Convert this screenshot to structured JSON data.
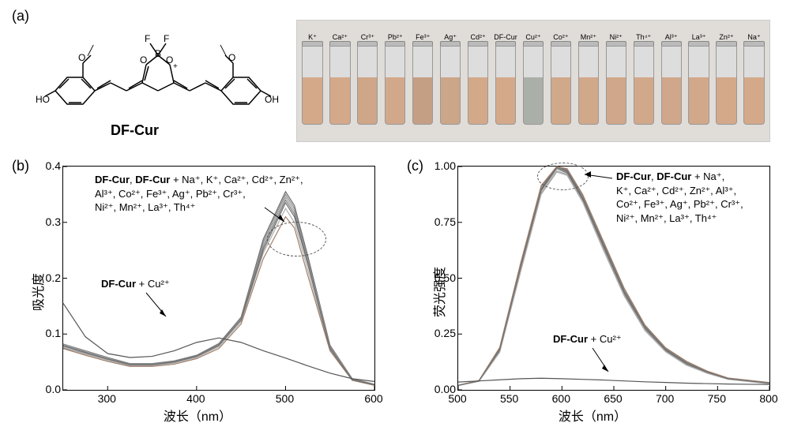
{
  "panels": {
    "a": {
      "label": "(a)"
    },
    "b": {
      "label": "(b)"
    },
    "c": {
      "label": "(c)"
    }
  },
  "structure": {
    "name": "DF-Cur",
    "atoms": [
      "HO",
      "O",
      "O",
      "O",
      "B",
      "F",
      "F",
      "O",
      "OH"
    ]
  },
  "vials": {
    "labels": [
      "K⁺",
      "Ca²⁺",
      "Cr³⁺",
      "Pb²⁺",
      "Fe³⁺",
      "Ag⁺",
      "Cd²⁺",
      "DF-Cur",
      "Cu²⁺",
      "Co²⁺",
      "Mn²⁺",
      "Ni²⁺",
      "Th⁴⁺",
      "Al³⁺",
      "La³⁺",
      "Zn²⁺",
      "Na⁺"
    ],
    "liquid_colors": [
      "#d4a98a",
      "#d4a98a",
      "#cfa688",
      "#d2a88a",
      "#c59f84",
      "#cca688",
      "#d3a98a",
      "#d4a98a",
      "#aab0a8",
      "#d0a88a",
      "#d2a88a",
      "#d0a78a",
      "#d2a88a",
      "#d0a78a",
      "#d2a88a",
      "#d3a98a",
      "#d4a98a"
    ]
  },
  "chartB": {
    "type": "line-bundle",
    "x_axis_label": "波长（nm）",
    "y_axis_label": "吸光度",
    "xlim": [
      250,
      600
    ],
    "ylim": [
      0,
      0.4
    ],
    "xticks": [
      300,
      400,
      500,
      600
    ],
    "yticks": [
      0.0,
      0.1,
      0.2,
      0.3,
      0.4
    ],
    "bundle_colors": [
      "#6a6a6a",
      "#8a8a8a",
      "#9c9c9c",
      "#7d7d7d",
      "#b0b0b0",
      "#a07f6a",
      "#707070"
    ],
    "cu_color": "#555555",
    "background_color": "#ffffff",
    "line_width": 1.2,
    "annotation_bundle_lines": [
      "DF-Cur, DF-Cur + Na⁺, K⁺, Ca²⁺,  Cd²⁺, Zn²⁺,",
      "Al³⁺, Co²⁺, Fe³⁺, Ag⁺, Pb²⁺, Cr³⁺,",
      "Ni²⁺, Mn²⁺, La³⁺, Th⁴⁺"
    ],
    "annotation_cu": "DF-Cur + Cu²⁺",
    "bundle_curves": [
      [
        [
          250,
          0.075
        ],
        [
          275,
          0.065
        ],
        [
          300,
          0.055
        ],
        [
          325,
          0.045
        ],
        [
          350,
          0.045
        ],
        [
          375,
          0.05
        ],
        [
          400,
          0.06
        ],
        [
          425,
          0.08
        ],
        [
          450,
          0.13
        ],
        [
          475,
          0.27
        ],
        [
          500,
          0.355
        ],
        [
          510,
          0.33
        ],
        [
          525,
          0.24
        ],
        [
          550,
          0.08
        ],
        [
          575,
          0.02
        ],
        [
          600,
          0.01
        ]
      ],
      [
        [
          250,
          0.08
        ],
        [
          275,
          0.068
        ],
        [
          300,
          0.056
        ],
        [
          325,
          0.046
        ],
        [
          350,
          0.046
        ],
        [
          375,
          0.051
        ],
        [
          400,
          0.061
        ],
        [
          425,
          0.082
        ],
        [
          450,
          0.128
        ],
        [
          475,
          0.265
        ],
        [
          500,
          0.35
        ],
        [
          510,
          0.325
        ],
        [
          525,
          0.235
        ],
        [
          550,
          0.078
        ],
        [
          575,
          0.02
        ],
        [
          600,
          0.01
        ]
      ],
      [
        [
          250,
          0.078
        ],
        [
          275,
          0.066
        ],
        [
          300,
          0.054
        ],
        [
          325,
          0.044
        ],
        [
          350,
          0.044
        ],
        [
          375,
          0.049
        ],
        [
          400,
          0.059
        ],
        [
          425,
          0.079
        ],
        [
          450,
          0.126
        ],
        [
          475,
          0.26
        ],
        [
          500,
          0.345
        ],
        [
          510,
          0.32
        ],
        [
          525,
          0.23
        ],
        [
          550,
          0.076
        ],
        [
          575,
          0.019
        ],
        [
          600,
          0.009
        ]
      ],
      [
        [
          250,
          0.082
        ],
        [
          275,
          0.07
        ],
        [
          300,
          0.058
        ],
        [
          325,
          0.047
        ],
        [
          350,
          0.047
        ],
        [
          375,
          0.052
        ],
        [
          400,
          0.062
        ],
        [
          425,
          0.083
        ],
        [
          450,
          0.13
        ],
        [
          475,
          0.255
        ],
        [
          500,
          0.34
        ],
        [
          510,
          0.315
        ],
        [
          525,
          0.228
        ],
        [
          550,
          0.075
        ],
        [
          575,
          0.019
        ],
        [
          600,
          0.009
        ]
      ],
      [
        [
          250,
          0.076
        ],
        [
          275,
          0.064
        ],
        [
          300,
          0.053
        ],
        [
          325,
          0.043
        ],
        [
          350,
          0.043
        ],
        [
          375,
          0.048
        ],
        [
          400,
          0.058
        ],
        [
          425,
          0.077
        ],
        [
          450,
          0.122
        ],
        [
          475,
          0.245
        ],
        [
          500,
          0.325
        ],
        [
          510,
          0.3
        ],
        [
          525,
          0.215
        ],
        [
          550,
          0.072
        ],
        [
          575,
          0.018
        ],
        [
          600,
          0.008
        ]
      ],
      [
        [
          250,
          0.074
        ],
        [
          275,
          0.062
        ],
        [
          300,
          0.051
        ],
        [
          325,
          0.042
        ],
        [
          350,
          0.042
        ],
        [
          375,
          0.046
        ],
        [
          400,
          0.056
        ],
        [
          425,
          0.074
        ],
        [
          450,
          0.118
        ],
        [
          475,
          0.235
        ],
        [
          500,
          0.31
        ],
        [
          510,
          0.29
        ],
        [
          525,
          0.205
        ],
        [
          550,
          0.07
        ],
        [
          575,
          0.017
        ],
        [
          600,
          0.008
        ]
      ],
      [
        [
          250,
          0.079
        ],
        [
          275,
          0.067
        ],
        [
          300,
          0.055
        ],
        [
          325,
          0.045
        ],
        [
          350,
          0.045
        ],
        [
          375,
          0.05
        ],
        [
          400,
          0.06
        ],
        [
          425,
          0.08
        ],
        [
          450,
          0.125
        ],
        [
          475,
          0.25
        ],
        [
          500,
          0.335
        ],
        [
          510,
          0.31
        ],
        [
          525,
          0.225
        ],
        [
          550,
          0.074
        ],
        [
          575,
          0.018
        ],
        [
          600,
          0.009
        ]
      ]
    ],
    "cu_curve": [
      [
        250,
        0.155
      ],
      [
        275,
        0.095
      ],
      [
        300,
        0.065
      ],
      [
        325,
        0.058
      ],
      [
        350,
        0.06
      ],
      [
        375,
        0.07
      ],
      [
        400,
        0.085
      ],
      [
        425,
        0.093
      ],
      [
        450,
        0.085
      ],
      [
        475,
        0.07
      ],
      [
        500,
        0.057
      ],
      [
        525,
        0.043
      ],
      [
        550,
        0.03
      ],
      [
        575,
        0.02
      ],
      [
        600,
        0.015
      ]
    ]
  },
  "chartC": {
    "type": "line-bundle",
    "x_axis_label": "波长（nm）",
    "y_axis_label": "荧光强度",
    "xlim": [
      500,
      800
    ],
    "ylim": [
      0,
      1.0
    ],
    "xticks": [
      500,
      550,
      600,
      650,
      700,
      750,
      800
    ],
    "yticks": [
      0.0,
      0.25,
      0.5,
      0.75,
      1.0
    ],
    "bundle_colors": [
      "#6a6a6a",
      "#8a8a8a",
      "#9c9c9c",
      "#7d7d7d",
      "#b0b0b0",
      "#a07f6a",
      "#707070"
    ],
    "cu_color": "#555555",
    "background_color": "#ffffff",
    "line_width": 1.2,
    "annotation_bundle_lines": [
      "DF-Cur, DF-Cur + Na⁺,",
      "K⁺, Ca²⁺, Cd²⁺, Zn²⁺, Al³⁺,",
      "Co²⁺, Fe³⁺, Ag⁺, Pb²⁺, Cr³⁺,",
      "Ni²⁺, Mn²⁺, La³⁺, Th⁴⁺"
    ],
    "annotation_cu": "DF-Cur + Cu²⁺",
    "bundle_curves": [
      [
        [
          500,
          0.02
        ],
        [
          520,
          0.04
        ],
        [
          540,
          0.18
        ],
        [
          560,
          0.55
        ],
        [
          580,
          0.9
        ],
        [
          595,
          1.0
        ],
        [
          605,
          0.98
        ],
        [
          620,
          0.86
        ],
        [
          640,
          0.65
        ],
        [
          660,
          0.44
        ],
        [
          680,
          0.28
        ],
        [
          700,
          0.18
        ],
        [
          720,
          0.12
        ],
        [
          740,
          0.08
        ],
        [
          760,
          0.05
        ],
        [
          780,
          0.04
        ],
        [
          800,
          0.03
        ]
      ],
      [
        [
          500,
          0.02
        ],
        [
          520,
          0.04
        ],
        [
          540,
          0.175
        ],
        [
          560,
          0.54
        ],
        [
          580,
          0.89
        ],
        [
          595,
          0.99
        ],
        [
          605,
          0.97
        ],
        [
          620,
          0.85
        ],
        [
          640,
          0.64
        ],
        [
          660,
          0.43
        ],
        [
          680,
          0.275
        ],
        [
          700,
          0.175
        ],
        [
          720,
          0.115
        ],
        [
          740,
          0.078
        ],
        [
          760,
          0.05
        ],
        [
          780,
          0.04
        ],
        [
          800,
          0.03
        ]
      ],
      [
        [
          500,
          0.02
        ],
        [
          520,
          0.039
        ],
        [
          540,
          0.17
        ],
        [
          560,
          0.53
        ],
        [
          580,
          0.88
        ],
        [
          595,
          0.98
        ],
        [
          605,
          0.965
        ],
        [
          620,
          0.845
        ],
        [
          640,
          0.63
        ],
        [
          660,
          0.425
        ],
        [
          680,
          0.27
        ],
        [
          700,
          0.172
        ],
        [
          720,
          0.112
        ],
        [
          740,
          0.076
        ],
        [
          760,
          0.048
        ],
        [
          780,
          0.038
        ],
        [
          800,
          0.028
        ]
      ],
      [
        [
          500,
          0.02
        ],
        [
          520,
          0.041
        ],
        [
          540,
          0.185
        ],
        [
          560,
          0.56
        ],
        [
          580,
          0.91
        ],
        [
          595,
          1.0
        ],
        [
          605,
          0.985
        ],
        [
          620,
          0.87
        ],
        [
          640,
          0.66
        ],
        [
          660,
          0.45
        ],
        [
          680,
          0.285
        ],
        [
          700,
          0.185
        ],
        [
          720,
          0.125
        ],
        [
          740,
          0.082
        ],
        [
          760,
          0.052
        ],
        [
          780,
          0.042
        ],
        [
          800,
          0.032
        ]
      ],
      [
        [
          500,
          0.019
        ],
        [
          520,
          0.038
        ],
        [
          540,
          0.168
        ],
        [
          560,
          0.525
        ],
        [
          580,
          0.875
        ],
        [
          595,
          0.975
        ],
        [
          605,
          0.96
        ],
        [
          620,
          0.84
        ],
        [
          640,
          0.625
        ],
        [
          660,
          0.42
        ],
        [
          680,
          0.265
        ],
        [
          700,
          0.17
        ],
        [
          720,
          0.11
        ],
        [
          740,
          0.074
        ],
        [
          760,
          0.047
        ],
        [
          780,
          0.037
        ],
        [
          800,
          0.027
        ]
      ],
      [
        [
          500,
          0.021
        ],
        [
          520,
          0.042
        ],
        [
          540,
          0.19
        ],
        [
          560,
          0.565
        ],
        [
          580,
          0.915
        ],
        [
          595,
          1.0
        ],
        [
          605,
          0.99
        ],
        [
          620,
          0.875
        ],
        [
          640,
          0.665
        ],
        [
          660,
          0.455
        ],
        [
          680,
          0.29
        ],
        [
          700,
          0.188
        ],
        [
          720,
          0.128
        ],
        [
          740,
          0.084
        ],
        [
          760,
          0.053
        ],
        [
          780,
          0.043
        ],
        [
          800,
          0.033
        ]
      ],
      [
        [
          500,
          0.02
        ],
        [
          520,
          0.04
        ],
        [
          540,
          0.178
        ],
        [
          560,
          0.545
        ],
        [
          580,
          0.895
        ],
        [
          595,
          0.995
        ],
        [
          605,
          0.975
        ],
        [
          620,
          0.855
        ],
        [
          640,
          0.645
        ],
        [
          660,
          0.435
        ],
        [
          680,
          0.278
        ],
        [
          700,
          0.178
        ],
        [
          720,
          0.118
        ],
        [
          740,
          0.079
        ],
        [
          760,
          0.05
        ],
        [
          780,
          0.04
        ],
        [
          800,
          0.03
        ]
      ]
    ],
    "cu_curve": [
      [
        500,
        0.035
      ],
      [
        520,
        0.04
      ],
      [
        540,
        0.045
      ],
      [
        560,
        0.05
      ],
      [
        580,
        0.052
      ],
      [
        600,
        0.05
      ],
      [
        620,
        0.047
      ],
      [
        640,
        0.044
      ],
      [
        660,
        0.04
      ],
      [
        680,
        0.036
      ],
      [
        700,
        0.033
      ],
      [
        720,
        0.03
      ],
      [
        740,
        0.028
      ],
      [
        760,
        0.026
      ],
      [
        780,
        0.025
      ],
      [
        800,
        0.024
      ]
    ]
  }
}
